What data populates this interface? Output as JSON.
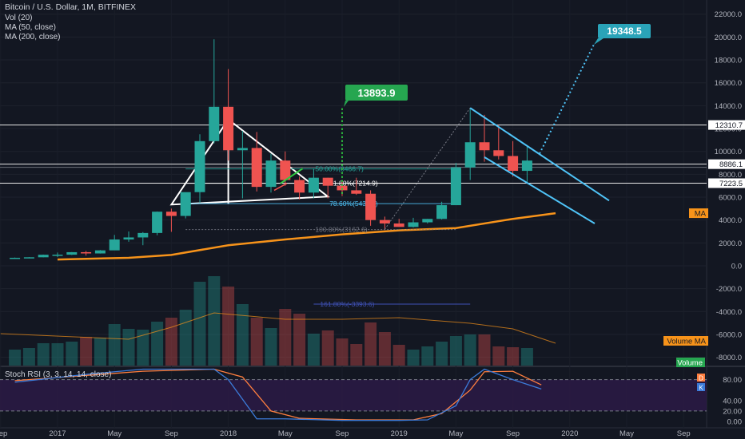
{
  "header": {
    "symbol_line": "Bitcoin / U.S. Dollar, 1M, BITFINEX",
    "indicators": [
      "Vol (20)",
      "MA (50, close)",
      "MA (200, close)"
    ],
    "stoch_label": "Stoch RSI (3, 3, 14, 14, close)"
  },
  "colors": {
    "background": "#131722",
    "bull": "#26a69a",
    "bear": "#ef5350",
    "ma200": "#f7931a",
    "channel": "#4fc3f7",
    "target_green": "#26a650",
    "target_cyan": "#2aa3b8",
    "stoch_k": "#3c7bd9",
    "stoch_d": "#ff7f3f"
  },
  "chart_data": [
    {
      "type": "candlestick",
      "title": "Bitcoin / U.S. Dollar, 1M, BITFINEX",
      "x_ticks": [
        "Sep",
        "2017",
        "May",
        "Sep",
        "2018",
        "May",
        "Sep",
        "2019",
        "May",
        "Sep",
        "2020",
        "May",
        "Sep"
      ],
      "y_ticks": [
        "22000.0",
        "20000.0",
        "18000.0",
        "16000.0",
        "14000.0",
        "12000.0",
        "10000.0",
        "8000.0",
        "6000.0",
        "4000.0",
        "2000.0",
        "0.0",
        "-2000.0",
        "-4000.0",
        "-6000.0",
        "-8000.0"
      ],
      "ylim": [
        -8500,
        22500
      ],
      "candles": [
        {
          "m": "2016-10",
          "o": 609,
          "h": 720,
          "l": 605,
          "c": 700
        },
        {
          "m": "2016-11",
          "o": 700,
          "h": 760,
          "l": 690,
          "c": 745
        },
        {
          "m": "2016-12",
          "o": 745,
          "h": 980,
          "l": 740,
          "c": 965
        },
        {
          "m": "2017-01",
          "o": 965,
          "h": 1160,
          "l": 760,
          "c": 970
        },
        {
          "m": "2017-02",
          "o": 970,
          "h": 1200,
          "l": 940,
          "c": 1190
        },
        {
          "m": "2017-03",
          "o": 1190,
          "h": 1300,
          "l": 890,
          "c": 1080
        },
        {
          "m": "2017-04",
          "o": 1080,
          "h": 1380,
          "l": 1070,
          "c": 1350
        },
        {
          "m": "2017-05",
          "o": 1350,
          "h": 2700,
          "l": 1360,
          "c": 2300
        },
        {
          "m": "2017-06",
          "o": 2300,
          "h": 3000,
          "l": 2100,
          "c": 2480
        },
        {
          "m": "2017-07",
          "o": 2480,
          "h": 2950,
          "l": 1800,
          "c": 2870
        },
        {
          "m": "2017-08",
          "o": 2870,
          "h": 4750,
          "l": 2670,
          "c": 4730
        },
        {
          "m": "2017-09",
          "o": 4730,
          "h": 5000,
          "l": 2970,
          "c": 4360
        },
        {
          "m": "2017-10",
          "o": 4360,
          "h": 6400,
          "l": 4140,
          "c": 6440
        },
        {
          "m": "2017-11",
          "o": 6440,
          "h": 11500,
          "l": 5500,
          "c": 10900
        },
        {
          "m": "2017-12",
          "o": 10900,
          "h": 19800,
          "l": 10700,
          "c": 13900
        },
        {
          "m": "2018-01",
          "o": 13900,
          "h": 17200,
          "l": 9200,
          "c": 10100
        },
        {
          "m": "2018-02",
          "o": 10100,
          "h": 11800,
          "l": 5900,
          "c": 10300
        },
        {
          "m": "2018-03",
          "o": 10300,
          "h": 11700,
          "l": 6500,
          "c": 6900
        },
        {
          "m": "2018-04",
          "o": 6900,
          "h": 9800,
          "l": 6400,
          "c": 9200
        },
        {
          "m": "2018-05",
          "o": 9200,
          "h": 10000,
          "l": 7000,
          "c": 7500
        },
        {
          "m": "2018-06",
          "o": 7500,
          "h": 7800,
          "l": 5800,
          "c": 6400
        },
        {
          "m": "2018-07",
          "o": 6400,
          "h": 8500,
          "l": 5900,
          "c": 7700
        },
        {
          "m": "2018-08",
          "o": 7700,
          "h": 7700,
          "l": 5900,
          "c": 7000
        },
        {
          "m": "2018-09",
          "o": 7000,
          "h": 7400,
          "l": 6100,
          "c": 6600
        },
        {
          "m": "2018-10",
          "o": 6600,
          "h": 7700,
          "l": 6200,
          "c": 6300
        },
        {
          "m": "2018-11",
          "o": 6300,
          "h": 6600,
          "l": 3500,
          "c": 4000
        },
        {
          "m": "2018-12",
          "o": 4000,
          "h": 4300,
          "l": 3200,
          "c": 3700
        },
        {
          "m": "2019-01",
          "o": 3700,
          "h": 4100,
          "l": 3400,
          "c": 3400
        },
        {
          "m": "2019-02",
          "o": 3400,
          "h": 4200,
          "l": 3350,
          "c": 3800
        },
        {
          "m": "2019-03",
          "o": 3800,
          "h": 4100,
          "l": 3700,
          "c": 4100
        },
        {
          "m": "2019-04",
          "o": 4100,
          "h": 5600,
          "l": 4050,
          "c": 5300
        },
        {
          "m": "2019-05",
          "o": 5300,
          "h": 9000,
          "l": 5300,
          "c": 8600
        },
        {
          "m": "2019-06",
          "o": 8600,
          "h": 13800,
          "l": 7500,
          "c": 10800
        },
        {
          "m": "2019-07",
          "o": 10800,
          "h": 13200,
          "l": 9100,
          "c": 10100
        },
        {
          "m": "2019-08",
          "o": 10100,
          "h": 12300,
          "l": 9300,
          "c": 9600
        },
        {
          "m": "2019-09",
          "o": 9600,
          "h": 10900,
          "l": 7800,
          "c": 8300
        },
        {
          "m": "2019-10",
          "o": 8300,
          "h": 10400,
          "l": 7300,
          "c": 9200
        }
      ],
      "ma200": [
        {
          "m": "2017-01",
          "v": 550
        },
        {
          "m": "2017-06",
          "v": 700
        },
        {
          "m": "2017-09",
          "v": 950
        },
        {
          "m": "2018-01",
          "v": 1800
        },
        {
          "m": "2018-05",
          "v": 2300
        },
        {
          "m": "2018-09",
          "v": 2750
        },
        {
          "m": "2019-01",
          "v": 3100
        },
        {
          "m": "2019-05",
          "v": 3300
        },
        {
          "m": "2019-09",
          "v": 4100
        },
        {
          "m": "2019-12",
          "v": 4600
        }
      ],
      "labels": {
        "target_1": "13893.9",
        "target_2": "19348.5",
        "price_12310": "12310.7",
        "price_8886": "8886.1",
        "price_8000": "8000.0",
        "price_7223": "7223.5",
        "ma_tag": "MA",
        "fib_50": "50.00%(8466.7)",
        "fib_618": "61.80%(7214.9)",
        "fib_786": "78.60%(5432.7)",
        "fib_100": "100.00%(3162.6)",
        "fib_1618": "161.80%(-3393.6)",
        "volume_ma_tag": "Volume MA",
        "volume_tag": "Volume"
      }
    },
    {
      "type": "bar",
      "title": "Vol (20)",
      "volumes": [
        20,
        22,
        28,
        28,
        30,
        36,
        35,
        52,
        46,
        45,
        55,
        60,
        70,
        105,
        112,
        99,
        77,
        60,
        47,
        71,
        65,
        40,
        44,
        34,
        27,
        54,
        42,
        26,
        20,
        24,
        30,
        37,
        39,
        39,
        24,
        23,
        22
      ]
    },
    {
      "type": "line",
      "title": "Stoch RSI (3, 3, 14, 14, close)",
      "y_ticks": [
        "80.00",
        "40.00",
        "20.00",
        "0.00"
      ],
      "ylim": [
        0,
        100
      ],
      "markers": [
        "D",
        "K"
      ],
      "k": [
        {
          "m": "2016-10",
          "v": 75
        },
        {
          "m": "2017-03",
          "v": 90
        },
        {
          "m": "2017-07",
          "v": 100
        },
        {
          "m": "2017-12",
          "v": 100
        },
        {
          "m": "2018-01",
          "v": 80
        },
        {
          "m": "2018-03",
          "v": 5
        },
        {
          "m": "2018-05",
          "v": 5
        },
        {
          "m": "2018-09",
          "v": 2
        },
        {
          "m": "2019-01",
          "v": 2
        },
        {
          "m": "2019-03",
          "v": 3
        },
        {
          "m": "2019-05",
          "v": 30
        },
        {
          "m": "2019-06",
          "v": 80
        },
        {
          "m": "2019-07",
          "v": 100
        },
        {
          "m": "2019-09",
          "v": 80
        },
        {
          "m": "2019-11",
          "v": 62
        }
      ],
      "d": [
        {
          "m": "2016-10",
          "v": 78
        },
        {
          "m": "2017-03",
          "v": 88
        },
        {
          "m": "2017-07",
          "v": 96
        },
        {
          "m": "2017-12",
          "v": 100
        },
        {
          "m": "2018-02",
          "v": 85
        },
        {
          "m": "2018-04",
          "v": 20
        },
        {
          "m": "2018-06",
          "v": 6
        },
        {
          "m": "2018-10",
          "v": 3
        },
        {
          "m": "2019-02",
          "v": 3
        },
        {
          "m": "2019-04",
          "v": 15
        },
        {
          "m": "2019-06",
          "v": 60
        },
        {
          "m": "2019-07",
          "v": 95
        },
        {
          "m": "2019-09",
          "v": 96
        },
        {
          "m": "2019-11",
          "v": 70
        }
      ]
    }
  ]
}
